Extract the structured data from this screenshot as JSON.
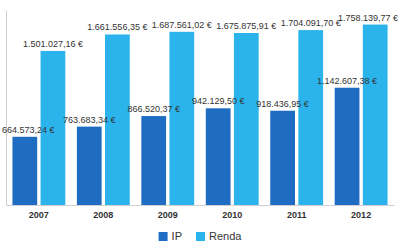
{
  "chart_data": {
    "type": "bar",
    "categories": [
      "2007",
      "2008",
      "2009",
      "2010",
      "2011",
      "2012"
    ],
    "series": [
      {
        "name": "IP",
        "color": "#1f6dc2",
        "values": [
          664573.24,
          763683.34,
          866520.37,
          942129.5,
          918436.95,
          1142607.38
        ],
        "value_labels": [
          "664.573,24 €",
          "763.683,34 €",
          "866.520,37 €",
          "942.129,50 €",
          "918.436,95 €",
          "1.142.607,38 €"
        ]
      },
      {
        "name": "Renda",
        "color": "#2bb3ec",
        "values": [
          1501027.16,
          1661556.35,
          1687561.02,
          1675875.91,
          1704091.7,
          1758139.77
        ],
        "value_labels": [
          "1.501.027,16 €",
          "1.661.556,35 €",
          "1.687.561,02 €",
          "1.675.875,91 €",
          "1.704.091,70 €",
          "1.758.139,77 €"
        ]
      }
    ],
    "ylim": [
      0,
      1900000
    ],
    "data_labels": true,
    "tick_labels": "x",
    "legend": "bottom",
    "grid": false
  }
}
